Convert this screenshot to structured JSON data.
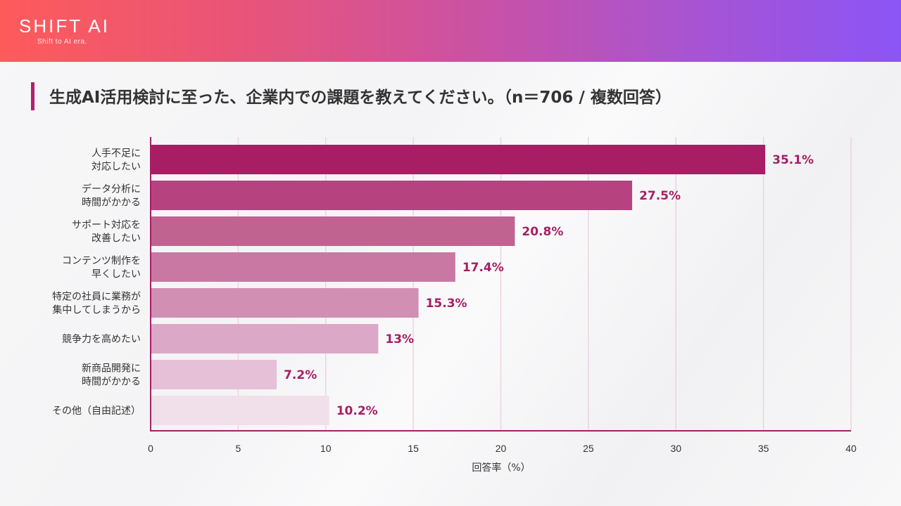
{
  "header": {
    "logo": "SHIFT AI",
    "tagline": "Shift to AI era."
  },
  "title": "生成AI活用検討に至った、企業内での課題を教えてください。（n＝706 / 複数回答）",
  "colors": {
    "accent": "#b0236f",
    "value_label": "#a71e64",
    "axis": "#a71e64",
    "gridline": "#ecd3df",
    "bars": [
      "#a71e64",
      "#b6437f",
      "#c06391",
      "#c978a3",
      "#d08fb3",
      "#dba8c7",
      "#e5c0d6",
      "#f1e0e9"
    ]
  },
  "chart_data": {
    "type": "bar",
    "orientation": "horizontal",
    "title": "生成AI活用検討に至った、企業内での課題を教えてください。（n＝706 / 複数回答）",
    "categories": [
      [
        "人手不足に",
        "対応したい"
      ],
      [
        "データ分析に",
        "時間がかかる"
      ],
      [
        "サポート対応を",
        "改善したい"
      ],
      [
        "コンテンツ制作を",
        "早くしたい"
      ],
      [
        "特定の社員に業務が",
        "集中してしまうから"
      ],
      [
        "競争力を高めたい"
      ],
      [
        "新商品開発に",
        "時間がかかる"
      ],
      [
        "その他（自由記述）"
      ]
    ],
    "values": [
      35.1,
      27.5,
      20.8,
      17.4,
      15.3,
      13,
      7.2,
      10.2
    ],
    "value_labels": [
      "35.1%",
      "27.5%",
      "20.8%",
      "17.4%",
      "15.3%",
      "13%",
      "7.2%",
      "10.2%"
    ],
    "xlabel": "回答率（%）",
    "ylabel": "",
    "xlim": [
      0,
      40
    ],
    "xticks": [
      0,
      5,
      10,
      15,
      20,
      25,
      30,
      35,
      40
    ],
    "grid": true,
    "legend": "none"
  }
}
